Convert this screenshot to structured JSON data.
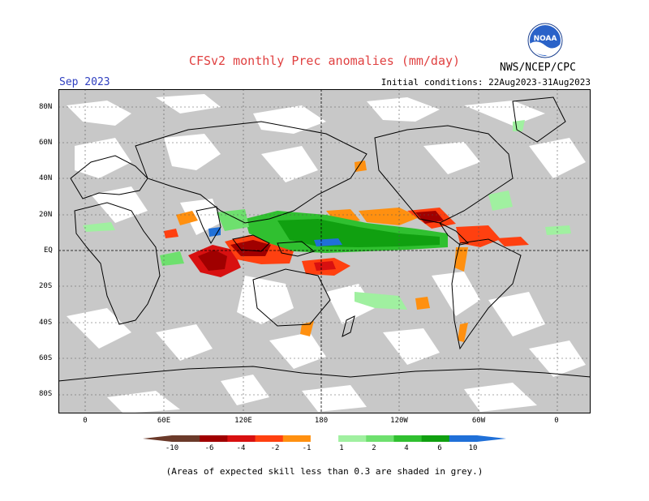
{
  "header": {
    "title": "CFSv2 monthly Prec anomalies (mm/day)",
    "month": "Sep 2023",
    "initial_conditions": "Initial conditions: 22Aug2023-31Aug2023",
    "credit": "NWS/NCEP/CPC",
    "logo_text": "NOAA"
  },
  "map": {
    "lat_labels": [
      "80N",
      "60N",
      "40N",
      "20N",
      "EQ",
      "20S",
      "40S",
      "60S",
      "80S"
    ],
    "lon_labels": [
      "0",
      "60E",
      "120E",
      "180",
      "120W",
      "60W",
      "0"
    ],
    "colors": {
      "skill_grey": "#c8c8c8",
      "coast": "#000000",
      "grid": "#555555"
    }
  },
  "colorbar": {
    "labels": [
      "-10",
      "-6",
      "-4",
      "-2",
      "-1",
      "1",
      "2",
      "4",
      "6",
      "10"
    ],
    "colors": [
      "#6b3a2a",
      "#a00000",
      "#d81010",
      "#ff4010",
      "#ff9010",
      "#ffffff",
      "#a0f0a0",
      "#6ee06e",
      "#30c030",
      "#10a010",
      "#2070d8"
    ]
  },
  "footnote": "(Areas of expected skill less than 0.3 are shaded in grey.)"
}
